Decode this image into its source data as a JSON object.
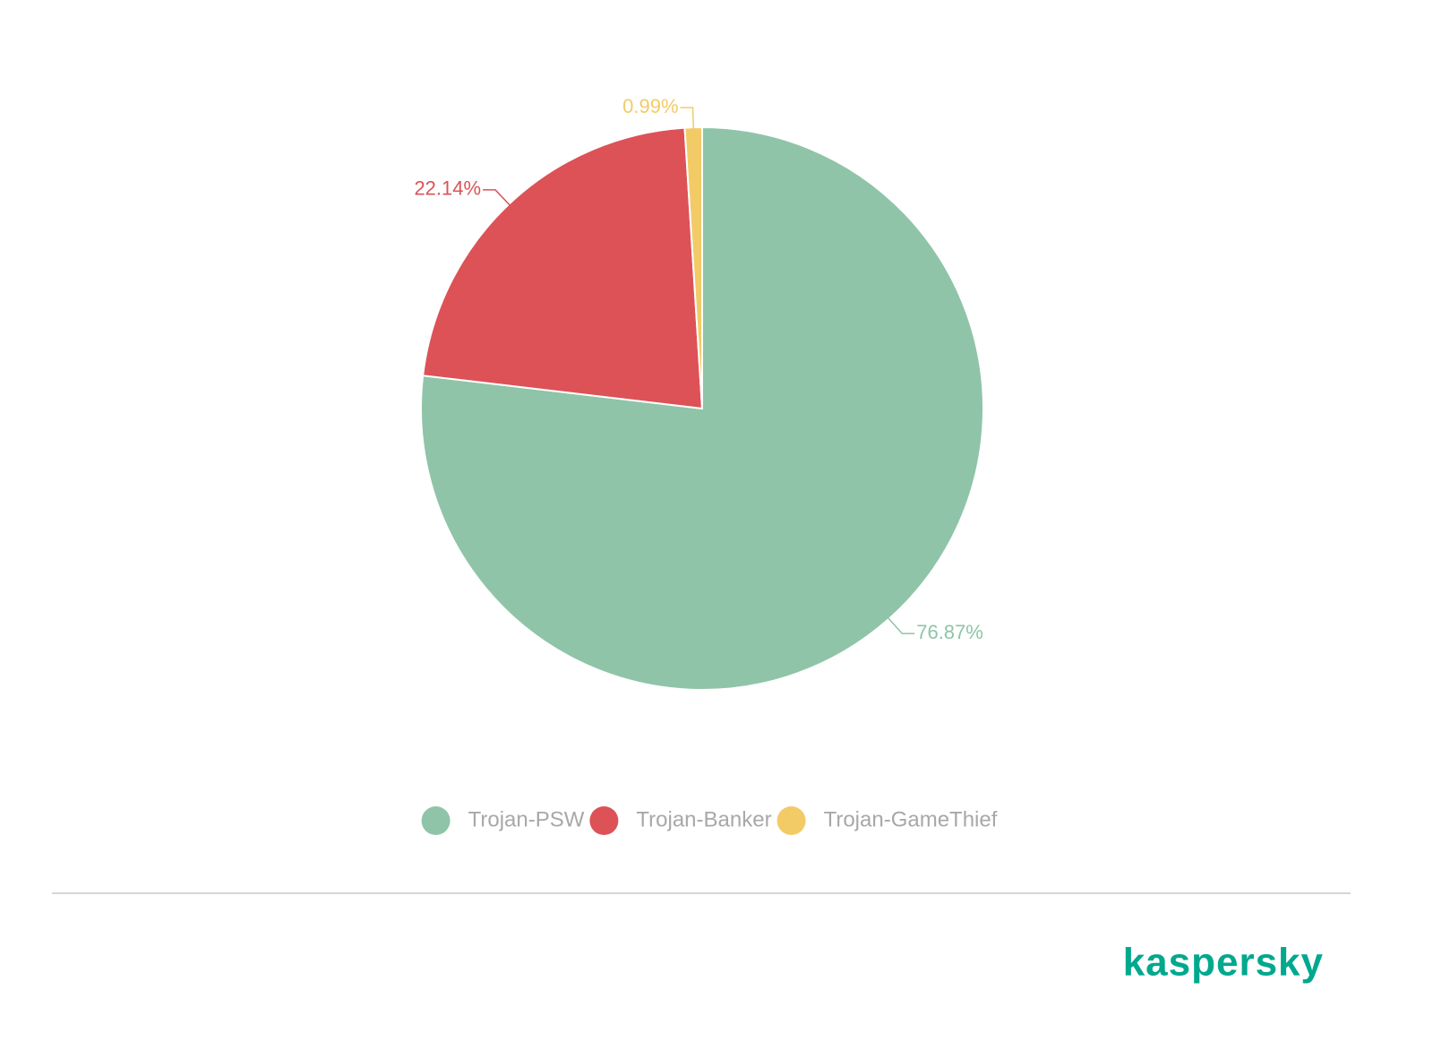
{
  "chart_data": {
    "type": "pie",
    "categories": [
      "Trojan-PSW",
      "Trojan-Banker",
      "Trojan-GameThief"
    ],
    "values": [
      76.87,
      22.14,
      0.99
    ],
    "value_labels": [
      "76.87%",
      "22.14%",
      "0.99%"
    ],
    "colors": [
      "#8fc4a8",
      "#dc5257",
      "#f2cb67"
    ],
    "legend": "bottom",
    "logo": "kaspersky"
  }
}
